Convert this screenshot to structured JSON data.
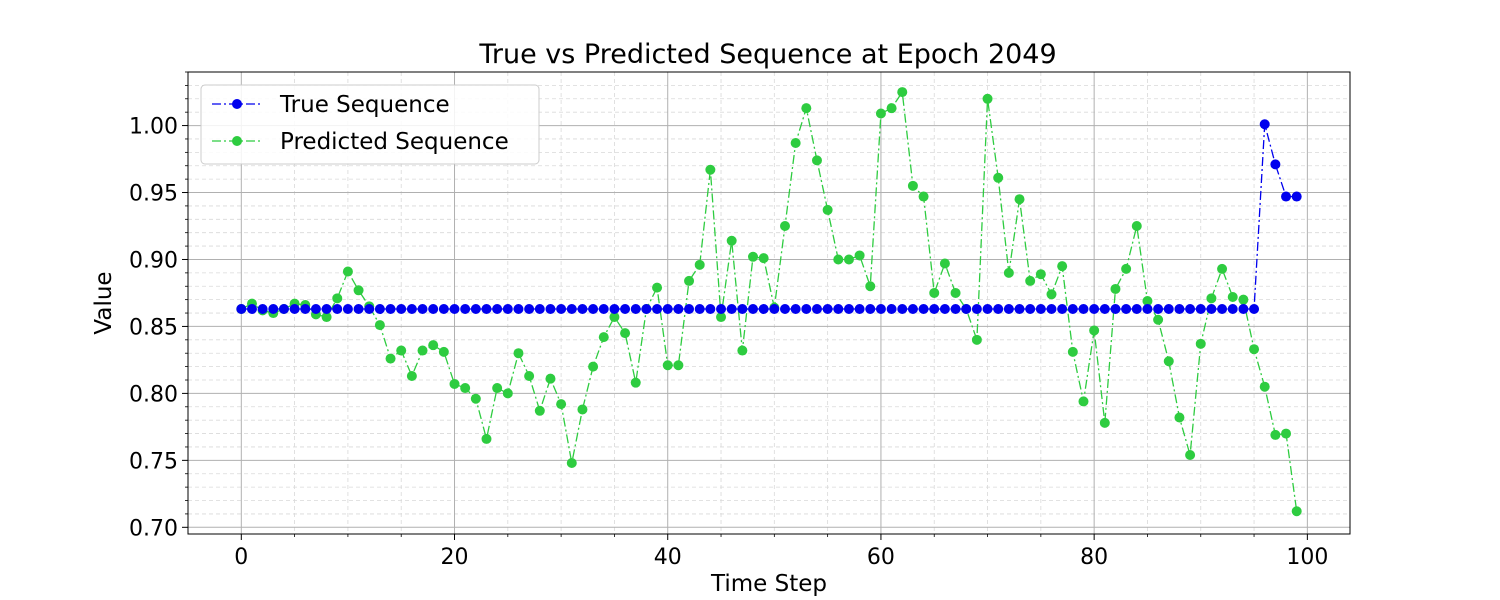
{
  "colors": {
    "true_series": "#0000ee",
    "predicted_series": "#2ecc40",
    "grid_major": "#b0b0b0",
    "grid_minor": "#d9d9d9"
  },
  "chart_data": {
    "type": "line",
    "title": "True vs Predicted Sequence at Epoch 2049",
    "xlabel": "Time Step",
    "ylabel": "Value",
    "xlim": [
      -5,
      104
    ],
    "ylim": [
      0.695,
      1.04
    ],
    "xticks": [
      0,
      20,
      40,
      60,
      80,
      100
    ],
    "xtick_labels": [
      "0",
      "20",
      "40",
      "60",
      "80",
      "100"
    ],
    "yticks": [
      0.7,
      0.75,
      0.8,
      0.85,
      0.9,
      0.95,
      1.0
    ],
    "ytick_labels": [
      "0.70",
      "0.75",
      "0.80",
      "0.85",
      "0.90",
      "0.95",
      "1.00"
    ],
    "grid": true,
    "minor_grid": true,
    "legend_position": "top-left",
    "line_style": "dash-dot",
    "marker": "circle",
    "series": [
      {
        "name": "True Sequence",
        "color": "#0000ee",
        "values": [
          0.863,
          0.863,
          0.863,
          0.863,
          0.863,
          0.863,
          0.863,
          0.863,
          0.863,
          0.863,
          0.863,
          0.863,
          0.863,
          0.863,
          0.863,
          0.863,
          0.863,
          0.863,
          0.863,
          0.863,
          0.863,
          0.863,
          0.863,
          0.863,
          0.863,
          0.863,
          0.863,
          0.863,
          0.863,
          0.863,
          0.863,
          0.863,
          0.863,
          0.863,
          0.863,
          0.863,
          0.863,
          0.863,
          0.863,
          0.863,
          0.863,
          0.863,
          0.863,
          0.863,
          0.863,
          0.863,
          0.863,
          0.863,
          0.863,
          0.863,
          0.863,
          0.863,
          0.863,
          0.863,
          0.863,
          0.863,
          0.863,
          0.863,
          0.863,
          0.863,
          0.863,
          0.863,
          0.863,
          0.863,
          0.863,
          0.863,
          0.863,
          0.863,
          0.863,
          0.863,
          0.863,
          0.863,
          0.863,
          0.863,
          0.863,
          0.863,
          0.863,
          0.863,
          0.863,
          0.863,
          0.863,
          0.863,
          0.863,
          0.863,
          0.863,
          0.863,
          0.863,
          0.863,
          0.863,
          0.863,
          0.863,
          0.863,
          0.863,
          0.863,
          0.863,
          0.863,
          1.001,
          0.971,
          0.947,
          0.947
        ]
      },
      {
        "name": "Predicted Sequence",
        "color": "#2ecc40",
        "values": [
          0.863,
          0.867,
          0.862,
          0.86,
          0.863,
          0.867,
          0.866,
          0.859,
          0.857,
          0.871,
          0.891,
          0.877,
          0.865,
          0.851,
          0.826,
          0.832,
          0.813,
          0.832,
          0.836,
          0.831,
          0.807,
          0.804,
          0.796,
          0.766,
          0.804,
          0.8,
          0.83,
          0.813,
          0.787,
          0.811,
          0.792,
          0.748,
          0.788,
          0.82,
          0.842,
          0.857,
          0.845,
          0.808,
          0.863,
          0.879,
          0.821,
          0.821,
          0.884,
          0.896,
          0.967,
          0.857,
          0.914,
          0.832,
          0.902,
          0.901,
          0.864,
          0.925,
          0.987,
          1.013,
          0.974,
          0.937,
          0.9,
          0.9,
          0.903,
          0.88,
          1.009,
          1.013,
          1.025,
          0.955,
          0.947,
          0.875,
          0.897,
          0.875,
          0.863,
          0.84,
          1.02,
          0.961,
          0.89,
          0.945,
          0.884,
          0.889,
          0.874,
          0.895,
          0.831,
          0.794,
          0.847,
          0.778,
          0.878,
          0.893,
          0.925,
          0.869,
          0.855,
          0.824,
          0.782,
          0.754,
          0.837,
          0.871,
          0.893,
          0.872,
          0.87,
          0.833,
          0.805,
          0.769,
          0.77,
          0.712
        ]
      }
    ]
  }
}
